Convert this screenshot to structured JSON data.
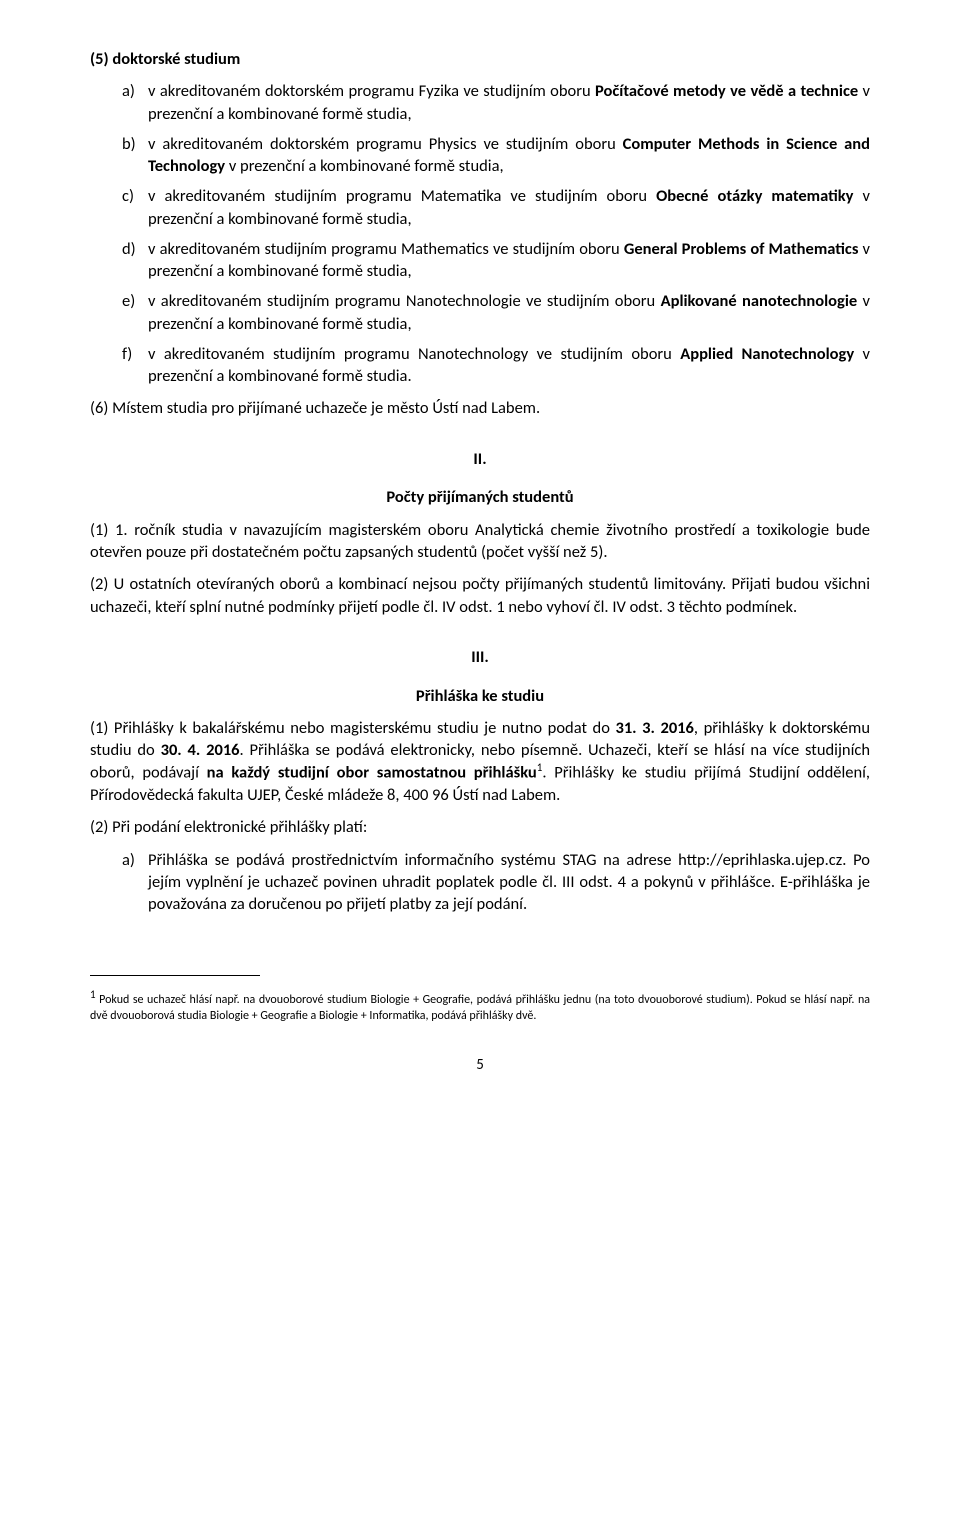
{
  "head": "(5) doktorské studium",
  "list1": {
    "a": {
      "m": "a)",
      "t": "v akreditovaném doktorském programu Fyzika ve studijním oboru <b>Počítačové metody ve vědě a technice</b> v prezenční a kombinované formě studia,"
    },
    "b": {
      "m": "b)",
      "t": "v akreditovaném doktorském programu Physics ve studijním oboru <b>Computer Methods in Science and Technology</b> v prezenční a kombinované formě studia,"
    },
    "c": {
      "m": "c)",
      "t": "v akreditovaném studijním programu Matematika ve studijním oboru <b>Obecné otázky matematiky</b> v prezenční a kombinované formě studia,"
    },
    "d": {
      "m": "d)",
      "t": "v akreditovaném studijním programu Mathematics ve studijním oboru <b>General Problems of Mathematics</b> v prezenční a kombinované formě studia,"
    },
    "e": {
      "m": "e)",
      "t": "v akreditovaném studijním programu Nanotechnologie ve studijním oboru <b>Aplikované nanotechnologie</b> v prezenční a kombinované formě studia,"
    },
    "f": {
      "m": "f)",
      "t": "v akreditovaném studijním programu Nanotechnology ve studijním oboru <b>Applied Nanotechnology</b> v prezenční a kombinované formě studia."
    }
  },
  "p6": "(6) Místem studia pro přijímané uchazeče je město Ústí nad Labem.",
  "sec2": {
    "num": "II.",
    "title": "Počty přijímaných studentů"
  },
  "p2_1": "(1) 1. ročník studia v navazujícím magisterském oboru Analytická chemie životního prostředí a toxikologie bude otevřen pouze při dostatečném počtu zapsaných studentů (počet vyšší než 5).",
  "p2_2": "(2) U ostatních otevíraných oborů a kombinací nejsou počty přijímaných studentů limitovány. Přijati budou všichni uchazeči, kteří splní nutné podmínky přijetí podle čl. IV odst. 1 nebo vyhoví čl. IV odst. 3 těchto podmínek.",
  "sec3": {
    "num": "III.",
    "title": "Přihláška ke studiu"
  },
  "p3_1": "(1) Přihlášky k bakalářskému nebo magisterskému studiu je nutno podat do <b>31. 3. 2016</b>, přihlášky k doktorskému studiu do <b>30. 4. 2016</b>. Přihláška se podává elektronicky, nebo písemně. Uchazeči, kteří se hlásí na více studijních oborů, podávají <b>na každý studijní obor samostatnou přihlášku</b><sup>1</sup>. Přihlášky ke studiu přijímá Studijní oddělení, Přírodovědecká fakulta UJEP, České mládeže 8, 400 96 Ústí nad Labem.",
  "p3_2": "(2) Při podání elektronické přihlášky platí:",
  "list3": {
    "a": {
      "m": "a)",
      "t": "Přihláška se podává prostřednictvím informačního systému STAG na adrese http://eprihlaska.ujep.cz. Po jejím vyplnění je uchazeč povinen uhradit poplatek podle čl. III odst. 4 a pokynů v přihlášce. E-přihláška je považována za doručenou po přijetí platby za její podání."
    }
  },
  "footnote": "<sup>1</sup> Pokud se uchazeč hlásí např. na dvouoborové studium Biologie + Geografie, podává přihlášku jednu (na toto dvouoborové studium). Pokud se hlásí např. na dvě dvouoborová studia Biologie + Geografie a Biologie + Informatika, podává přihlášky dvě.",
  "page_num": "5"
}
